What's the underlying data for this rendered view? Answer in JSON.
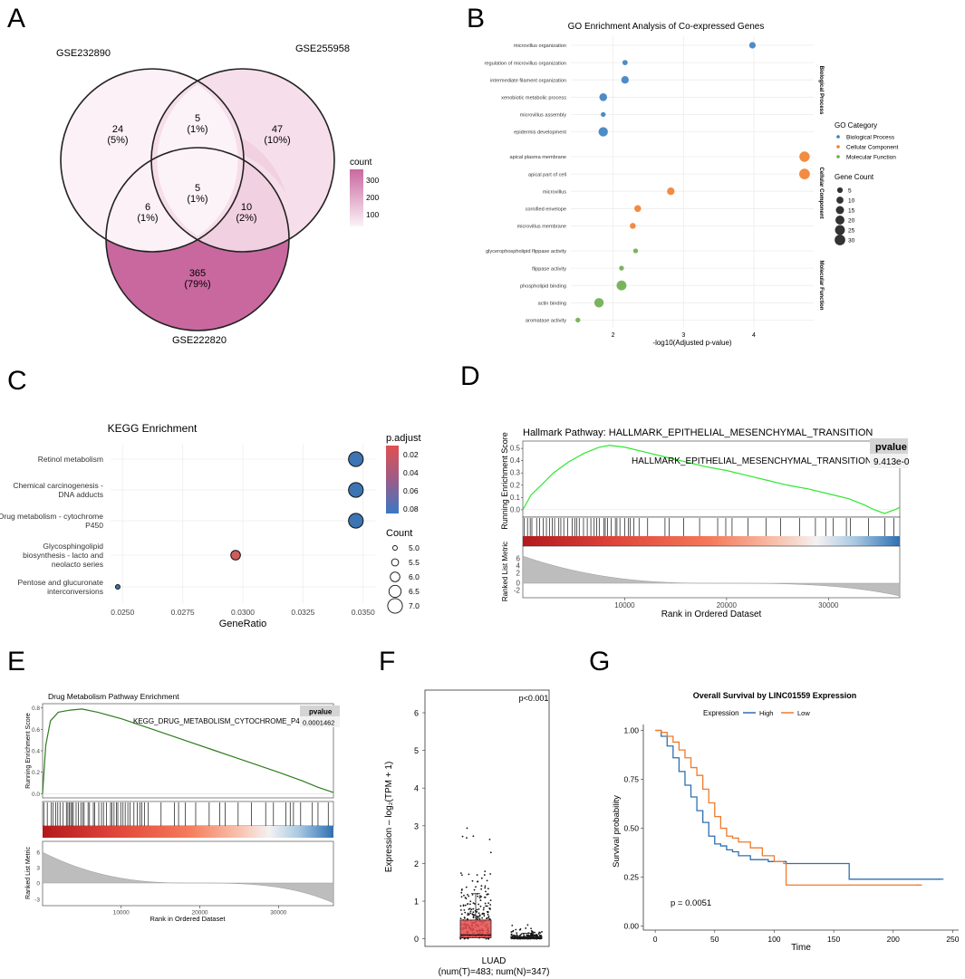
{
  "panel_letters": {
    "A": "A",
    "B": "B",
    "C": "C",
    "D": "D",
    "E": "E",
    "F": "F",
    "G": "G"
  },
  "venn": {
    "sets": [
      "GSE232890",
      "GSE255958",
      "GSE222820"
    ],
    "regions": [
      {
        "id": "only1",
        "count": "24",
        "pct": "(5%)",
        "value": 24
      },
      {
        "id": "only2",
        "count": "47",
        "pct": "(10%)",
        "value": 47
      },
      {
        "id": "only3",
        "count": "365",
        "pct": "(79%)",
        "value": 365
      },
      {
        "id": "r12",
        "count": "5",
        "pct": "(1%)",
        "value": 5
      },
      {
        "id": "r13",
        "count": "6",
        "pct": "(1%)",
        "value": 6
      },
      {
        "id": "r23",
        "count": "10",
        "pct": "(2%)",
        "value": 10
      },
      {
        "id": "r123",
        "count": "5",
        "pct": "(1%)",
        "value": 5
      }
    ],
    "legend_title": "count",
    "legend_ticks": [
      "300",
      "200",
      "100"
    ],
    "colors": {
      "low": "#ffffff",
      "high": "#c9689f"
    }
  },
  "chart_data": [
    {
      "id": "go",
      "type": "scatter",
      "title": "GO Enrichment Analysis of Co-expressed Genes",
      "xlabel": "-log10(Adjusted p-value)",
      "xlim": [
        1.4,
        4.85
      ],
      "xticks": [
        "2",
        "3",
        "4"
      ],
      "groups": [
        {
          "name": "Biological Process",
          "color": "#3b7fc0",
          "terms": [
            {
              "term": "microvillus organization",
              "x": 3.98,
              "count": 8
            },
            {
              "term": "regulation of microvillus organization",
              "x": 2.17,
              "count": 4
            },
            {
              "term": "intermediate filament organization",
              "x": 2.17,
              "count": 12
            },
            {
              "term": "xenobiotic metabolic process",
              "x": 1.86,
              "count": 13
            },
            {
              "term": "microvillus assembly",
              "x": 1.86,
              "count": 3
            },
            {
              "term": "epidermis development",
              "x": 1.86,
              "count": 22
            }
          ]
        },
        {
          "name": "Cellular Component",
          "color": "#ef7f2d",
          "terms": [
            {
              "term": "apical plasma membrane",
              "x": 4.72,
              "count": 28
            },
            {
              "term": "apical part of cell",
              "x": 4.72,
              "count": 30
            },
            {
              "term": "microvillus",
              "x": 2.82,
              "count": 12
            },
            {
              "term": "cornified envelope",
              "x": 2.35,
              "count": 9
            },
            {
              "term": "microvillus membrane",
              "x": 2.28,
              "count": 6
            }
          ]
        },
        {
          "name": "Molecular Function",
          "color": "#6aad4c",
          "terms": [
            {
              "term": "glycerophospholipid flippase activity",
              "x": 2.32,
              "count": 3
            },
            {
              "term": "flippase activity",
              "x": 2.12,
              "count": 3
            },
            {
              "term": "phospholipid binding",
              "x": 2.12,
              "count": 25
            },
            {
              "term": "actin binding",
              "x": 1.8,
              "count": 22
            },
            {
              "term": "aromatase activity",
              "x": 1.5,
              "count": 3
            }
          ]
        }
      ],
      "legend_category_title": "GO Category",
      "legend_size_title": "Gene Count",
      "size_legend": [
        "5",
        "10",
        "15",
        "20",
        "25",
        "30"
      ]
    },
    {
      "id": "kegg",
      "type": "scatter",
      "title": "KEGG Enrichment",
      "xlabel": "GeneRatio",
      "xlim": [
        0.0245,
        0.0355
      ],
      "xticks": [
        "0.0250",
        "0.0275",
        "0.0300",
        "0.0325",
        "0.0350"
      ],
      "points": [
        {
          "label": [
            "Retinol metabolism"
          ],
          "x": 0.0347,
          "padjust": 0.075,
          "count": 7,
          "color": "#3d74b3"
        },
        {
          "label": [
            "Chemical carcinogenesis -",
            "DNA adducts"
          ],
          "x": 0.0347,
          "padjust": 0.075,
          "count": 7,
          "color": "#3d74b3"
        },
        {
          "label": [
            "Drug metabolism - cytochrome",
            "P450"
          ],
          "x": 0.0347,
          "padjust": 0.075,
          "count": 7,
          "color": "#3d74b3"
        },
        {
          "label": [
            "Glycosphingolipid",
            "biosynthesis - lacto and",
            "neolacto series"
          ],
          "x": 0.0297,
          "padjust": 0.02,
          "count": 6,
          "color": "#d05c5c"
        },
        {
          "label": [
            "Pentose and glucuronate",
            "interconversions"
          ],
          "x": 0.0248,
          "padjust": 0.078,
          "count": 5,
          "color": "#3b73b6"
        }
      ],
      "colorbar_title": "p.adjust",
      "colorbar_ticks": [
        "0.02",
        "0.04",
        "0.06",
        "0.08"
      ],
      "size_title": "Count",
      "size_ticks": [
        "5.0",
        "5.5",
        "6.0",
        "6.5",
        "7.0"
      ]
    },
    {
      "id": "gsea_emt",
      "type": "line",
      "title": "Hallmark Pathway: HALLMARK_EPITHELIAL_MESENCHYMAL_TRANSITION",
      "ylabel": "Running Enrichment Score",
      "ylabel2": "Ranked List Metric",
      "xlabel": "Rank in Ordered Dataset",
      "xmax": 37000,
      "xticks": [
        "10000",
        "20000",
        "30000"
      ],
      "yticks": [
        "0.5",
        "0.4",
        "0.3",
        "0.2",
        "0.1",
        "0.0"
      ],
      "y2ticks": [
        "6",
        "4",
        "2",
        "0",
        "-2"
      ],
      "line_color": "#2ee82e",
      "series_label": "HALLMARK_EPITHELIAL_MESENCHYMAL_TRANSITION",
      "pvalue_header": "pvalue",
      "pvalue": "9.413e-0",
      "points": [
        [
          0,
          0
        ],
        [
          800,
          0.12
        ],
        [
          1800,
          0.2
        ],
        [
          3000,
          0.3
        ],
        [
          4500,
          0.39
        ],
        [
          6000,
          0.46
        ],
        [
          7500,
          0.51
        ],
        [
          8500,
          0.525
        ],
        [
          10000,
          0.51
        ],
        [
          12000,
          0.47
        ],
        [
          14000,
          0.43
        ],
        [
          16000,
          0.39
        ],
        [
          18000,
          0.35
        ],
        [
          20000,
          0.32
        ],
        [
          22000,
          0.28
        ],
        [
          24000,
          0.24
        ],
        [
          26000,
          0.2
        ],
        [
          28000,
          0.17
        ],
        [
          30000,
          0.13
        ],
        [
          32000,
          0.09
        ],
        [
          33500,
          0.04
        ],
        [
          34500,
          0.0
        ],
        [
          35500,
          -0.03
        ],
        [
          36500,
          0.0
        ],
        [
          37000,
          0.02
        ]
      ]
    },
    {
      "id": "gsea_drug",
      "type": "line",
      "title": "Drug Metabolism Pathway Enrichment",
      "ylabel": "Running Enrichment Score",
      "ylabel2": "Ranked List Metric",
      "xlabel": "Rank in Ordered Dataset",
      "xmax": 37000,
      "xticks": [
        "10000",
        "20000",
        "30000"
      ],
      "yticks": [
        "0.8",
        "0.6",
        "0.4",
        "0.2",
        "0.0"
      ],
      "y2ticks": [
        "6",
        "3",
        "0",
        "-3"
      ],
      "line_color": "#2e7d1e",
      "series_label": "KEGG_DRUG_METABOLISM_CYTOCHROME_P450",
      "pvalue_header": "pvalue",
      "pvalue": "0.0001462",
      "points": [
        [
          0,
          0.0
        ],
        [
          400,
          0.45
        ],
        [
          1000,
          0.68
        ],
        [
          2000,
          0.76
        ],
        [
          3500,
          0.78
        ],
        [
          5000,
          0.79
        ],
        [
          7000,
          0.76
        ],
        [
          10000,
          0.7
        ],
        [
          14000,
          0.6
        ],
        [
          18000,
          0.5
        ],
        [
          22000,
          0.4
        ],
        [
          26000,
          0.3
        ],
        [
          30000,
          0.2
        ],
        [
          33000,
          0.12
        ],
        [
          35000,
          0.06
        ],
        [
          37000,
          0.01
        ]
      ]
    },
    {
      "id": "box",
      "type": "box",
      "ylabel": "Expression – log₂(TPM + 1)",
      "yticks": [
        "0",
        "1",
        "2",
        "3",
        "4",
        "5",
        "6"
      ],
      "ylim": [
        -0.2,
        6.6
      ],
      "pvalue": "p<0.001",
      "category": "LUAD",
      "sub": "(num(T)=483; num(N)=347)",
      "tumor": {
        "n": 483,
        "q1": 0.03,
        "median": 0.1,
        "q3": 0.5,
        "whisker": 1.2,
        "color": "#e64b4b"
      },
      "normal": {
        "n": 347,
        "q1": 0.0,
        "median": 0.02,
        "q3": 0.06,
        "whisker": 0.15,
        "color": "#1f1f1f"
      }
    },
    {
      "id": "km",
      "type": "line",
      "title": "Overall Survival by LINC01559 Expression",
      "legend_title": "Expression",
      "xlabel": "Time",
      "ylabel": "Survival probability",
      "xlim": [
        -10,
        255
      ],
      "ylim": [
        -0.02,
        1.03
      ],
      "xticks": [
        "0",
        "50",
        "100",
        "150",
        "200",
        "250"
      ],
      "yticks": [
        "1.00",
        "0.75",
        "0.50",
        "0.25",
        "0.00"
      ],
      "pvalue": "p = 0.0051",
      "series": [
        {
          "name": "High",
          "color": "#2f6fb0",
          "steps": [
            [
              0,
              1.0
            ],
            [
              5,
              0.97
            ],
            [
              10,
              0.92
            ],
            [
              15,
              0.86
            ],
            [
              20,
              0.79
            ],
            [
              25,
              0.72
            ],
            [
              30,
              0.66
            ],
            [
              35,
              0.59
            ],
            [
              40,
              0.53
            ],
            [
              45,
              0.46
            ],
            [
              50,
              0.42
            ],
            [
              55,
              0.41
            ],
            [
              60,
              0.39
            ],
            [
              65,
              0.38
            ],
            [
              70,
              0.36
            ],
            [
              80,
              0.34
            ],
            [
              95,
              0.33
            ],
            [
              110,
              0.32
            ],
            [
              160,
              0.32
            ],
            [
              163,
              0.24
            ],
            [
              240,
              0.24
            ]
          ]
        },
        {
          "name": "Low",
          "color": "#ee7b2b",
          "steps": [
            [
              0,
              1.0
            ],
            [
              5,
              0.99
            ],
            [
              10,
              0.97
            ],
            [
              15,
              0.94
            ],
            [
              20,
              0.9
            ],
            [
              25,
              0.86
            ],
            [
              30,
              0.81
            ],
            [
              35,
              0.77
            ],
            [
              40,
              0.7
            ],
            [
              45,
              0.63
            ],
            [
              50,
              0.56
            ],
            [
              55,
              0.5
            ],
            [
              60,
              0.46
            ],
            [
              65,
              0.45
            ],
            [
              70,
              0.43
            ],
            [
              80,
              0.4
            ],
            [
              90,
              0.36
            ],
            [
              100,
              0.33
            ],
            [
              108,
              0.32
            ],
            [
              110,
              0.21
            ],
            [
              222,
              0.21
            ]
          ]
        }
      ]
    }
  ]
}
